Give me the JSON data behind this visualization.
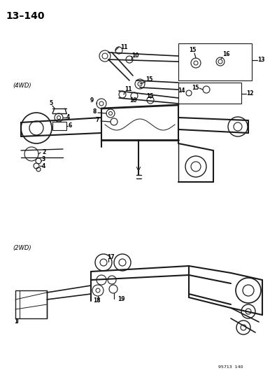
{
  "title": "13–140",
  "background_color": "#ffffff",
  "line_color": "#1a1a1a",
  "text_color": "#000000",
  "page_id": "95713  140",
  "label_4wd": "(4WD)",
  "label_2wd": "(2WD)",
  "figsize": [
    3.86,
    5.33
  ],
  "dpi": 100
}
